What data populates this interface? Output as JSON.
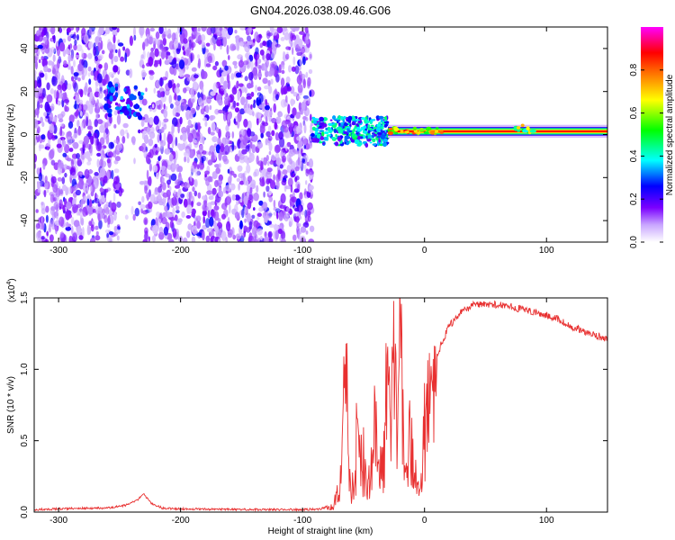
{
  "title": "GN04.2026.038.09.46.G06",
  "chart_data": [
    {
      "type": "heatmap",
      "xlabel": "Height of straight line (km)",
      "ylabel": "Frequency (Hz)",
      "xlim": [
        -320,
        150
      ],
      "ylim": [
        -50,
        50
      ],
      "xticks": [
        -300,
        -200,
        -100,
        0,
        100
      ],
      "yticks": [
        -40,
        -20,
        0,
        20,
        40
      ],
      "colorbar": {
        "label": "Normalized spectral amplitude",
        "range": [
          0,
          1
        ],
        "ticks": [
          "0.0",
          "0.2",
          "0.4",
          "0.6",
          "0.8"
        ],
        "tick_values": [
          0.0,
          0.2,
          0.4,
          0.6,
          0.8
        ],
        "colors": [
          "#ffffff",
          "#7b00ff",
          "#0000ff",
          "#00ffff",
          "#00ff00",
          "#ffff00",
          "#ff0000",
          "#ff00ff"
        ]
      },
      "regions": [
        {
          "x": [
            -320,
            -92
          ],
          "freq": [
            -50,
            50
          ],
          "amplitude": [
            0.0,
            0.25
          ],
          "kind": "broadband noise"
        },
        {
          "x": [
            -250,
            -232
          ],
          "freq": [
            -50,
            50
          ],
          "amplitude": [
            0.0,
            0.02
          ],
          "kind": "data gap"
        },
        {
          "x": [
            -92,
            -30
          ],
          "freq": [
            -5,
            8
          ],
          "amplitude": [
            0.2,
            0.5
          ],
          "kind": "scattered signal"
        },
        {
          "x": [
            -30,
            150
          ],
          "freq": [
            0,
            3
          ],
          "amplitude": [
            0.75,
            1.0
          ],
          "kind": "narrow carrier line"
        }
      ]
    },
    {
      "type": "line",
      "xlabel": "Height of straight line (km)",
      "ylabel": "SNR (10 * v/v)",
      "scale_label": "(x10",
      "scale_exp": "4",
      "scale_suffix": ")",
      "xlim": [
        -320,
        150
      ],
      "ylim": [
        0,
        1.5
      ],
      "xticks": [
        -300,
        -200,
        -100,
        0,
        100
      ],
      "yticks": [
        "0.0",
        "0.5",
        "1.0",
        "1.5"
      ],
      "ytick_values": [
        0,
        0.5,
        1.0,
        1.5
      ],
      "color": "#e83030",
      "series": [
        {
          "x": [
            -320,
            -300,
            -280,
            -260,
            -245,
            -235,
            -230,
            -225,
            -215,
            -200,
            -150,
            -100,
            -85,
            -75,
            -70,
            -67,
            -64,
            -62,
            -58,
            -55,
            -50,
            -47,
            -44,
            -40,
            -37,
            -34,
            -31,
            -28,
            -25,
            -22,
            -20,
            -18,
            -15,
            -12,
            -10,
            -7,
            -4,
            0,
            5,
            10,
            15,
            20,
            25,
            30,
            40,
            50,
            60,
            70,
            80,
            90,
            100,
            110,
            120,
            130,
            140,
            150
          ],
          "values": [
            0.01,
            0.015,
            0.02,
            0.02,
            0.04,
            0.08,
            0.12,
            0.06,
            0.02,
            0.015,
            0.01,
            0.01,
            0.015,
            0.05,
            0.2,
            0.7,
            1.2,
            0.3,
            0.15,
            0.6,
            0.35,
            0.2,
            0.3,
            0.8,
            0.5,
            0.4,
            1.0,
            0.8,
            1.2,
            0.6,
            1.55,
            1.0,
            0.4,
            0.7,
            0.5,
            0.3,
            0.15,
            0.7,
            0.9,
            1.1,
            1.2,
            1.3,
            1.35,
            1.4,
            1.45,
            1.46,
            1.45,
            1.44,
            1.42,
            1.4,
            1.38,
            1.35,
            1.3,
            1.27,
            1.24,
            1.21
          ]
        }
      ]
    }
  ]
}
